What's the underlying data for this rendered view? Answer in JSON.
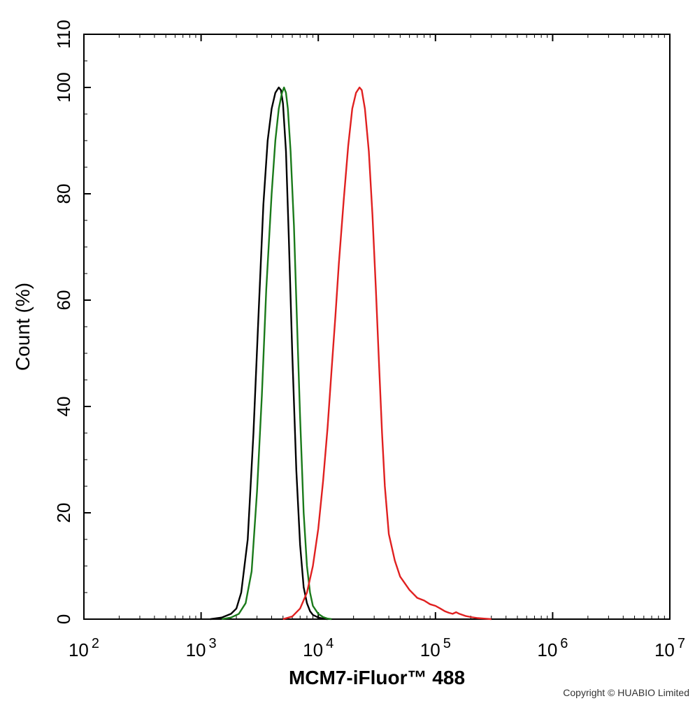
{
  "chart_data": {
    "type": "line",
    "xlabel": "MCM7-iFluor™ 488",
    "ylabel": "Count  (%)",
    "x_scale": "log",
    "xlim": [
      100,
      10000000
    ],
    "ylim": [
      0,
      110
    ],
    "x_ticks": [
      {
        "base": "10",
        "exp": "2"
      },
      {
        "base": "10",
        "exp": "3"
      },
      {
        "base": "10",
        "exp": "4"
      },
      {
        "base": "10",
        "exp": "5"
      },
      {
        "base": "10",
        "exp": "6"
      },
      {
        "base": "10",
        "exp": "7"
      }
    ],
    "y_ticks": [
      "0",
      "20",
      "40",
      "60",
      "80",
      "100",
      "110"
    ],
    "y_tick_values": [
      0,
      20,
      40,
      60,
      80,
      100,
      110
    ],
    "grid": false,
    "series": [
      {
        "color": "#000000",
        "x": [
          1200,
          1500,
          1800,
          2000,
          2200,
          2500,
          2800,
          3100,
          3400,
          3700,
          4000,
          4300,
          4600,
          4800,
          5000,
          5300,
          5600,
          6000,
          6500,
          7000,
          7500,
          8000,
          8500,
          9000,
          10000,
          11000,
          12000
        ],
        "y": [
          0,
          0.3,
          1,
          2,
          5,
          15,
          35,
          58,
          78,
          90,
          96,
          99,
          100,
          99.5,
          97,
          88,
          72,
          50,
          28,
          14,
          6,
          3,
          1.5,
          0.8,
          0.3,
          0.1,
          0
        ]
      },
      {
        "color": "#1a7a1a",
        "x": [
          1500,
          1800,
          2100,
          2400,
          2700,
          3000,
          3300,
          3600,
          4000,
          4300,
          4600,
          4900,
          5100,
          5300,
          5500,
          5800,
          6200,
          6600,
          7000,
          7500,
          8000,
          8500,
          9000,
          10000,
          11000,
          12000,
          13000
        ],
        "y": [
          0,
          0.3,
          1,
          3,
          9,
          24,
          42,
          62,
          80,
          90,
          96,
          99,
          100,
          99,
          96,
          88,
          74,
          55,
          38,
          20,
          10,
          5,
          2.5,
          1,
          0.4,
          0.1,
          0
        ]
      },
      {
        "color": "#e02020",
        "x": [
          5000,
          6000,
          7000,
          8000,
          9000,
          10000,
          11000,
          12000,
          13000,
          14000,
          15000,
          16500,
          18000,
          19500,
          21000,
          22500,
          23500,
          25000,
          27000,
          29000,
          31000,
          33000,
          35000,
          37000,
          40000,
          45000,
          50000,
          60000,
          70000,
          80000,
          90000,
          100000,
          110000,
          120000,
          130000,
          140000,
          150000,
          160000,
          180000,
          200000,
          230000,
          260000,
          300000
        ],
        "y": [
          0,
          0.5,
          2,
          5,
          10,
          17,
          26,
          36,
          47,
          57,
          67,
          79,
          89,
          96,
          99,
          100,
          99.5,
          96,
          88,
          76,
          62,
          48,
          35,
          25,
          16,
          11,
          8,
          5.5,
          4,
          3.5,
          2.8,
          2.5,
          2,
          1.5,
          1.2,
          1,
          1.3,
          1,
          0.6,
          0.4,
          0.2,
          0.1,
          0
        ]
      }
    ]
  },
  "footer": {
    "copyright": "Copyright © HUABIO Limited"
  }
}
